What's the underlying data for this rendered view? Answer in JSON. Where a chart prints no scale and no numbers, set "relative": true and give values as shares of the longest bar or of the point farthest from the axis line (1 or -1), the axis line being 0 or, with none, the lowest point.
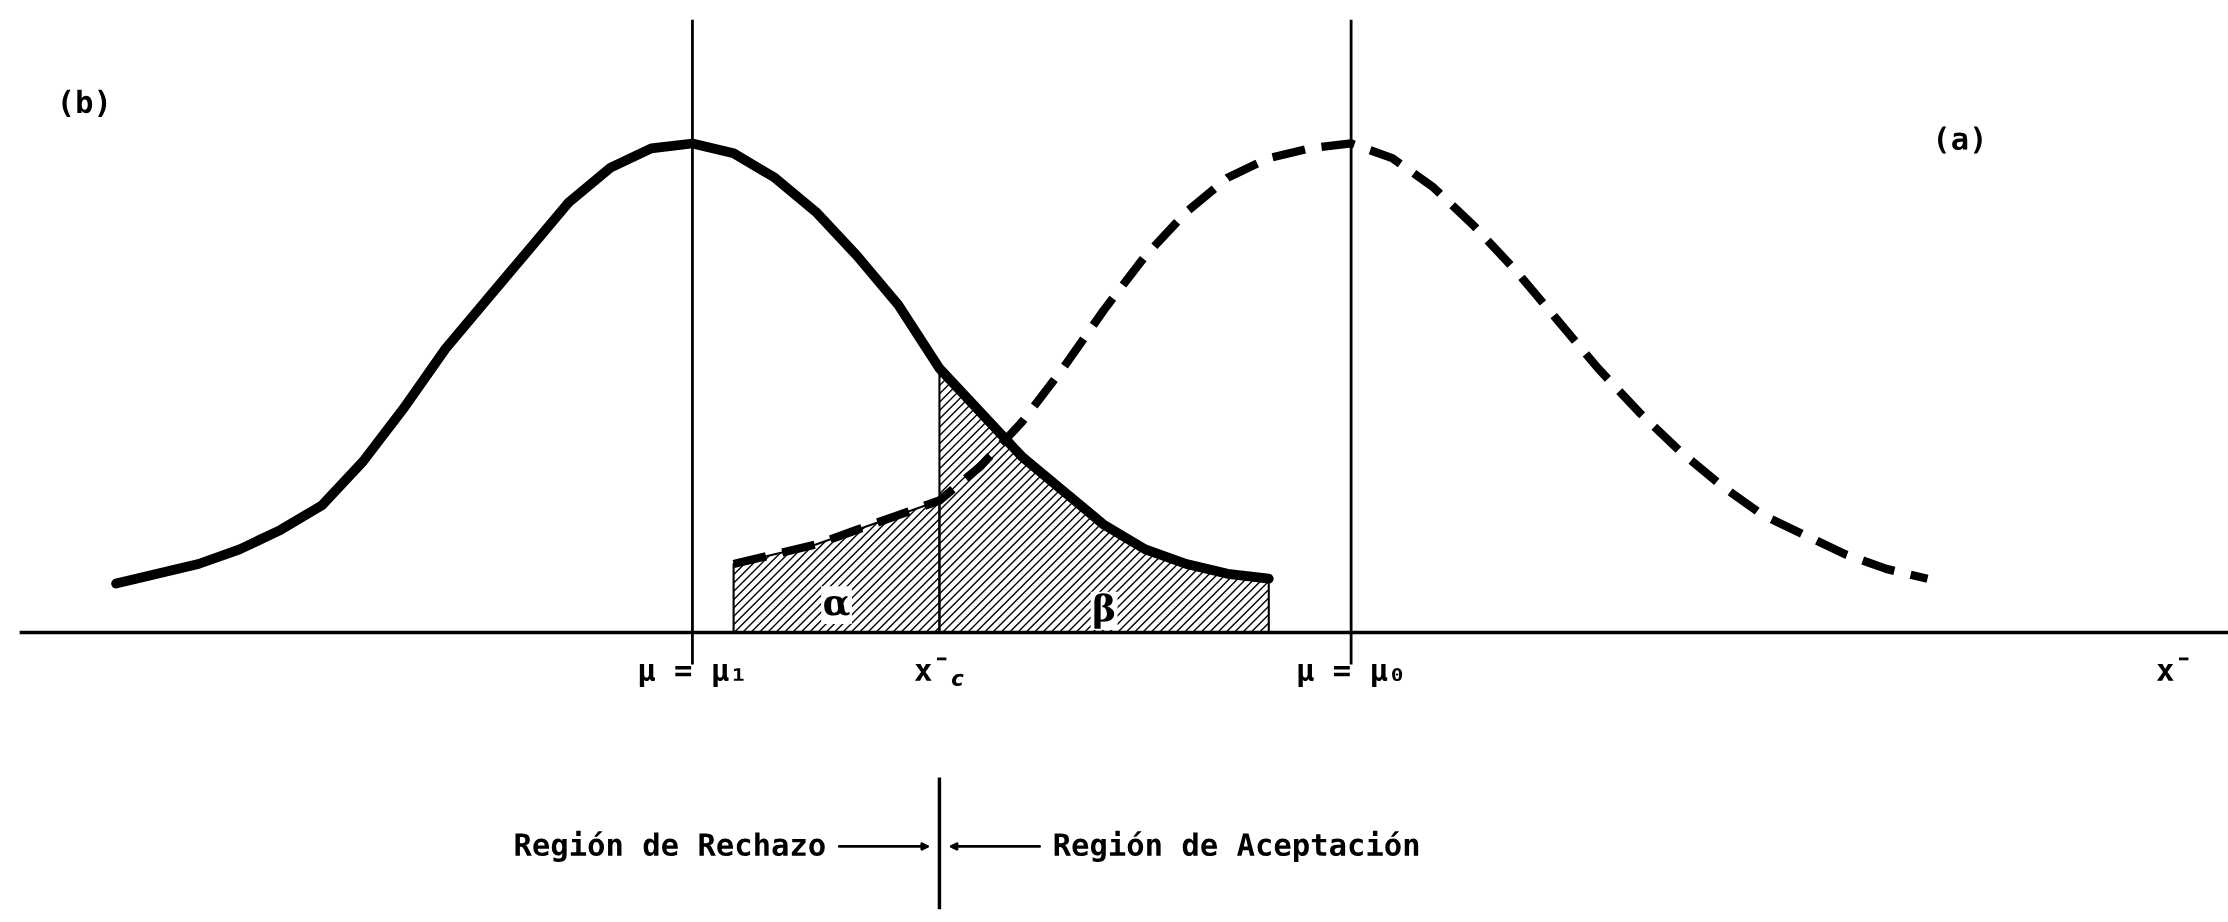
{
  "chart_data": {
    "type": "line",
    "relative": true,
    "categories": [
      null,
      null,
      null,
      null,
      null,
      null,
      null,
      null,
      null,
      null,
      null,
      null,
      null,
      null,
      null,
      null,
      "μ = μ₁",
      null,
      null,
      null,
      null,
      null,
      "x̄$_{c}$",
      null,
      null,
      null,
      null,
      null,
      null,
      null,
      null,
      null,
      "μ = μ₀",
      null,
      null,
      null,
      null,
      null,
      null,
      null,
      null,
      null,
      null,
      null,
      null,
      null,
      null,
      null,
      null,
      null,
      null,
      null,
      "x̄",
      null
    ],
    "grid": false,
    "legend": false,
    "tick_labels": "x",
    "series": [
      {
        "color": "#000000",
        "line_style": "solid",
        "values": [
          null,
          null,
          0.1,
          0.12,
          0.14,
          0.17,
          0.21,
          0.26,
          0.35,
          0.46,
          0.58,
          0.68,
          0.78,
          0.88,
          0.95,
          0.99,
          1.0,
          0.98,
          0.93,
          0.86,
          0.77,
          0.67,
          0.54,
          0.45,
          0.36,
          0.29,
          0.22,
          0.17,
          0.14,
          0.12,
          0.11,
          null,
          null,
          null,
          null,
          null,
          null,
          null,
          null,
          null,
          null,
          null,
          null,
          null,
          null,
          null,
          null,
          null,
          null,
          null,
          null,
          null,
          null,
          null
        ]
      },
      {
        "color": "#000000",
        "line_style": "dashed",
        "values": [
          null,
          null,
          null,
          null,
          null,
          null,
          null,
          null,
          null,
          null,
          null,
          null,
          null,
          null,
          null,
          null,
          null,
          0.14,
          0.16,
          0.18,
          0.21,
          0.24,
          0.27,
          0.34,
          0.43,
          0.54,
          0.66,
          0.77,
          0.86,
          0.93,
          0.97,
          0.99,
          1.0,
          0.97,
          0.91,
          0.83,
          0.74,
          0.64,
          0.54,
          0.45,
          0.37,
          0.3,
          0.24,
          0.2,
          0.16,
          0.13,
          0.11,
          null,
          null,
          null,
          null,
          null,
          null,
          null
        ]
      },
      {
        "type": "area",
        "color": "#000000",
        "values": [
          null,
          null,
          null,
          null,
          null,
          null,
          null,
          null,
          null,
          null,
          null,
          null,
          null,
          null,
          null,
          null,
          null,
          0.14,
          0.16,
          0.18,
          0.21,
          0.24,
          0.27,
          null,
          null,
          null,
          null,
          null,
          null,
          null,
          null,
          null,
          null,
          null,
          null,
          null,
          null,
          null,
          null,
          null,
          null,
          null,
          null,
          null,
          null,
          null,
          null,
          null,
          null,
          null,
          null,
          null,
          null,
          null
        ]
      },
      {
        "type": "area",
        "color": "#000000",
        "values": [
          null,
          null,
          null,
          null,
          null,
          null,
          null,
          null,
          null,
          null,
          null,
          null,
          null,
          null,
          null,
          null,
          null,
          null,
          null,
          null,
          null,
          null,
          0.54,
          0.45,
          0.36,
          0.29,
          0.22,
          0.17,
          0.14,
          0.12,
          0.11,
          null,
          null,
          null,
          null,
          null,
          null,
          null,
          null,
          null,
          null,
          null,
          null,
          null,
          null,
          null,
          null,
          null,
          null,
          null,
          null,
          null,
          null,
          null
        ]
      }
    ],
    "ref_lines": [
      {
        "axis": "x",
        "value": "μ = μ₁"
      },
      {
        "axis": "x",
        "value": "μ = μ₀"
      }
    ],
    "annotations": [
      "(b)",
      "(a)",
      "α",
      "β",
      "Región de Rechazo",
      "Región de Aceptación"
    ]
  }
}
